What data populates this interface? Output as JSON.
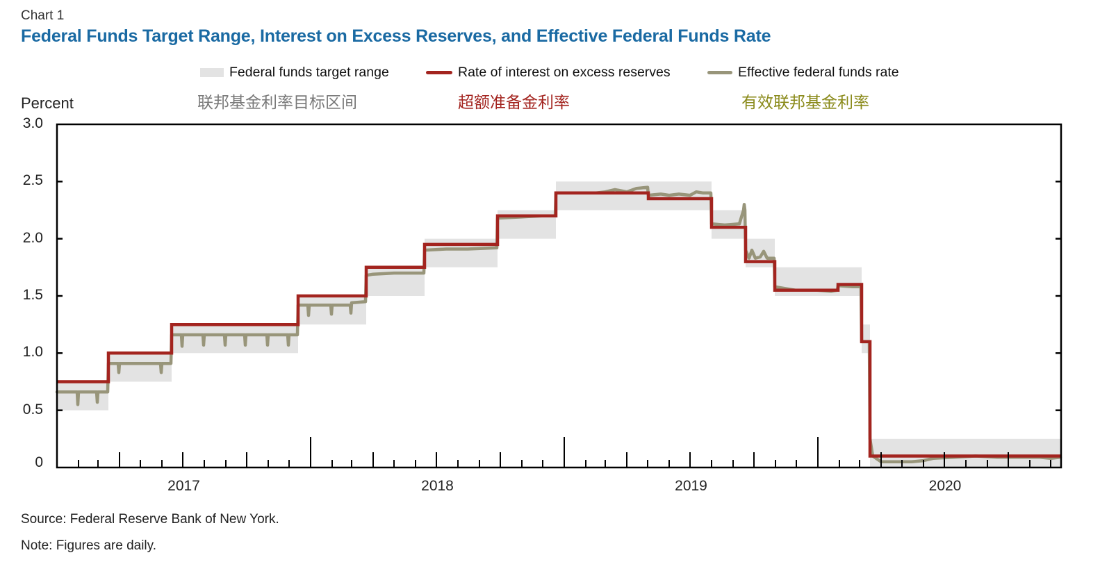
{
  "header": {
    "chart_label": "Chart 1",
    "title": "Federal Funds Target Range, Interest on Excess Reserves, and Effective Federal Funds Rate"
  },
  "legend": {
    "items": [
      {
        "label": "Federal funds target range",
        "label_cn": "联邦基金利率目标区间",
        "color": "#e3e3e3",
        "cn_color": "#7a7a7a"
      },
      {
        "label": "Rate of interest on excess reserves",
        "label_cn": "超额准备金利率",
        "color": "#a3241f",
        "cn_color": "#a3241f"
      },
      {
        "label": "Effective federal funds rate",
        "label_cn": "有效联邦基金利率",
        "color": "#98957a",
        "cn_color": "#8a8a1a"
      }
    ]
  },
  "footer": {
    "source": "Source: Federal Reserve Bank of New York.",
    "note": "Note: Figures are daily."
  },
  "chart_data": {
    "type": "line",
    "title": "Federal Funds Target Range, Interest on Excess Reserves, and Effective Federal Funds Rate",
    "ylabel": "Percent",
    "xlabel": "",
    "ylim": [
      0,
      3.0
    ],
    "yticks": [
      0,
      0.5,
      1.0,
      1.5,
      2.0,
      2.5,
      3.0
    ],
    "ytick_labels": [
      "0",
      "0.5",
      "1.0",
      "1.5",
      "2.0",
      "2.5",
      "3.0"
    ],
    "xlim": [
      "2017-01-01",
      "2020-12-15"
    ],
    "x_year_labels": [
      {
        "label": "2017",
        "year": 2017
      },
      {
        "label": "2018",
        "year": 2018
      },
      {
        "label": "2019",
        "year": 2019
      },
      {
        "label": "2020",
        "year": 2020
      }
    ],
    "x_ticks": "monthly minor, quarterly medium, yearly major",
    "grid": false,
    "legend_position": "top",
    "series": [
      {
        "name": "Federal funds target range",
        "type": "range",
        "color": "#e3e3e3",
        "segments": [
          {
            "start": "2017-01-01",
            "end": "2017-03-16",
            "low": 0.5,
            "high": 0.75
          },
          {
            "start": "2017-03-16",
            "end": "2017-06-15",
            "low": 0.75,
            "high": 1.0
          },
          {
            "start": "2017-06-15",
            "end": "2017-12-14",
            "low": 1.0,
            "high": 1.25
          },
          {
            "start": "2017-12-14",
            "end": "2018-03-22",
            "low": 1.25,
            "high": 1.5
          },
          {
            "start": "2018-03-22",
            "end": "2018-06-14",
            "low": 1.5,
            "high": 1.75
          },
          {
            "start": "2018-06-14",
            "end": "2018-09-27",
            "low": 1.75,
            "high": 2.0
          },
          {
            "start": "2018-09-27",
            "end": "2018-12-20",
            "low": 2.0,
            "high": 2.25
          },
          {
            "start": "2018-12-20",
            "end": "2019-08-01",
            "low": 2.25,
            "high": 2.5
          },
          {
            "start": "2019-08-01",
            "end": "2019-09-19",
            "low": 2.0,
            "high": 2.25
          },
          {
            "start": "2019-09-19",
            "end": "2019-10-31",
            "low": 1.75,
            "high": 2.0
          },
          {
            "start": "2019-10-31",
            "end": "2020-03-04",
            "low": 1.5,
            "high": 1.75
          },
          {
            "start": "2020-03-04",
            "end": "2020-03-16",
            "low": 1.0,
            "high": 1.25
          },
          {
            "start": "2020-03-16",
            "end": "2020-12-15",
            "low": 0.0,
            "high": 0.25
          }
        ]
      },
      {
        "name": "Rate of interest on excess reserves",
        "type": "step",
        "color": "#a3241f",
        "steps": [
          {
            "date": "2017-01-01",
            "value": 0.75
          },
          {
            "date": "2017-03-16",
            "value": 1.0
          },
          {
            "date": "2017-06-15",
            "value": 1.25
          },
          {
            "date": "2017-12-14",
            "value": 1.5
          },
          {
            "date": "2018-03-22",
            "value": 1.75
          },
          {
            "date": "2018-06-14",
            "value": 1.95
          },
          {
            "date": "2018-09-27",
            "value": 2.2
          },
          {
            "date": "2018-12-20",
            "value": 2.4
          },
          {
            "date": "2019-05-02",
            "value": 2.35
          },
          {
            "date": "2019-08-01",
            "value": 2.1
          },
          {
            "date": "2019-09-19",
            "value": 1.8
          },
          {
            "date": "2019-10-31",
            "value": 1.55
          },
          {
            "date": "2020-01-30",
            "value": 1.6
          },
          {
            "date": "2020-03-04",
            "value": 1.1
          },
          {
            "date": "2020-03-16",
            "value": 0.1
          },
          {
            "date": "2020-12-15",
            "value": 0.1
          }
        ]
      },
      {
        "name": "Effective federal funds rate",
        "type": "line",
        "color": "#98957a",
        "points": [
          [
            "2017-01-01",
            0.66
          ],
          [
            "2017-01-30",
            0.66
          ],
          [
            "2017-01-31",
            0.55
          ],
          [
            "2017-02-01",
            0.66
          ],
          [
            "2017-02-27",
            0.66
          ],
          [
            "2017-02-28",
            0.57
          ],
          [
            "2017-03-01",
            0.66
          ],
          [
            "2017-03-15",
            0.66
          ],
          [
            "2017-03-16",
            0.91
          ],
          [
            "2017-03-30",
            0.91
          ],
          [
            "2017-03-31",
            0.83
          ],
          [
            "2017-04-01",
            0.91
          ],
          [
            "2017-05-30",
            0.91
          ],
          [
            "2017-05-31",
            0.83
          ],
          [
            "2017-06-01",
            0.91
          ],
          [
            "2017-06-14",
            0.91
          ],
          [
            "2017-06-15",
            1.16
          ],
          [
            "2017-06-29",
            1.16
          ],
          [
            "2017-06-30",
            1.06
          ],
          [
            "2017-07-01",
            1.16
          ],
          [
            "2017-07-30",
            1.16
          ],
          [
            "2017-07-31",
            1.07
          ],
          [
            "2017-08-01",
            1.16
          ],
          [
            "2017-08-30",
            1.16
          ],
          [
            "2017-08-31",
            1.07
          ],
          [
            "2017-09-01",
            1.16
          ],
          [
            "2017-09-28",
            1.16
          ],
          [
            "2017-09-29",
            1.07
          ],
          [
            "2017-09-30",
            1.16
          ],
          [
            "2017-10-30",
            1.16
          ],
          [
            "2017-10-31",
            1.07
          ],
          [
            "2017-11-01",
            1.16
          ],
          [
            "2017-11-29",
            1.16
          ],
          [
            "2017-11-30",
            1.07
          ],
          [
            "2017-12-01",
            1.16
          ],
          [
            "2017-12-13",
            1.16
          ],
          [
            "2017-12-14",
            1.42
          ],
          [
            "2017-12-28",
            1.42
          ],
          [
            "2017-12-29",
            1.33
          ],
          [
            "2017-12-30",
            1.42
          ],
          [
            "2018-01-30",
            1.42
          ],
          [
            "2018-01-31",
            1.34
          ],
          [
            "2018-02-01",
            1.42
          ],
          [
            "2018-02-27",
            1.42
          ],
          [
            "2018-02-28",
            1.35
          ],
          [
            "2018-03-01",
            1.44
          ],
          [
            "2018-03-21",
            1.45
          ],
          [
            "2018-03-22",
            1.68
          ],
          [
            "2018-04-01",
            1.69
          ],
          [
            "2018-05-01",
            1.7
          ],
          [
            "2018-06-13",
            1.7
          ],
          [
            "2018-06-14",
            1.9
          ],
          [
            "2018-07-15",
            1.91
          ],
          [
            "2018-08-15",
            1.91
          ],
          [
            "2018-09-26",
            1.92
          ],
          [
            "2018-09-27",
            2.18
          ],
          [
            "2018-10-31",
            2.19
          ],
          [
            "2018-11-30",
            2.2
          ],
          [
            "2018-12-19",
            2.2
          ],
          [
            "2018-12-20",
            2.4
          ],
          [
            "2019-02-15",
            2.4
          ],
          [
            "2019-03-01",
            2.41
          ],
          [
            "2019-03-15",
            2.43
          ],
          [
            "2019-04-01",
            2.41
          ],
          [
            "2019-04-15",
            2.44
          ],
          [
            "2019-05-01",
            2.45
          ],
          [
            "2019-05-02",
            2.38
          ],
          [
            "2019-05-20",
            2.39
          ],
          [
            "2019-06-01",
            2.38
          ],
          [
            "2019-06-15",
            2.39
          ],
          [
            "2019-07-01",
            2.38
          ],
          [
            "2019-07-10",
            2.41
          ],
          [
            "2019-07-20",
            2.4
          ],
          [
            "2019-07-31",
            2.4
          ],
          [
            "2019-08-01",
            2.13
          ],
          [
            "2019-08-20",
            2.12
          ],
          [
            "2019-09-10",
            2.13
          ],
          [
            "2019-09-16",
            2.25
          ],
          [
            "2019-09-17",
            2.3
          ],
          [
            "2019-09-18",
            2.25
          ],
          [
            "2019-09-19",
            1.9
          ],
          [
            "2019-09-24",
            1.83
          ],
          [
            "2019-09-28",
            1.9
          ],
          [
            "2019-10-03",
            1.83
          ],
          [
            "2019-10-10",
            1.84
          ],
          [
            "2019-10-15",
            1.89
          ],
          [
            "2019-10-20",
            1.83
          ],
          [
            "2019-10-30",
            1.83
          ],
          [
            "2019-10-31",
            1.58
          ],
          [
            "2019-11-30",
            1.55
          ],
          [
            "2019-12-31",
            1.55
          ],
          [
            "2020-01-20",
            1.54
          ],
          [
            "2020-01-29",
            1.55
          ],
          [
            "2020-01-30",
            1.59
          ],
          [
            "2020-02-20",
            1.58
          ],
          [
            "2020-03-03",
            1.58
          ],
          [
            "2020-03-04",
            1.1
          ],
          [
            "2020-03-15",
            1.1
          ],
          [
            "2020-03-16",
            0.25
          ],
          [
            "2020-03-20",
            0.1
          ],
          [
            "2020-04-01",
            0.05
          ],
          [
            "2020-05-01",
            0.05
          ],
          [
            "2020-05-15",
            0.05
          ],
          [
            "2020-06-01",
            0.06
          ],
          [
            "2020-06-15",
            0.08
          ],
          [
            "2020-07-15",
            0.09
          ],
          [
            "2020-08-15",
            0.1
          ],
          [
            "2020-09-15",
            0.09
          ],
          [
            "2020-10-15",
            0.09
          ],
          [
            "2020-11-15",
            0.09
          ],
          [
            "2020-12-01",
            0.08
          ],
          [
            "2020-12-15",
            0.09
          ]
        ]
      }
    ]
  }
}
